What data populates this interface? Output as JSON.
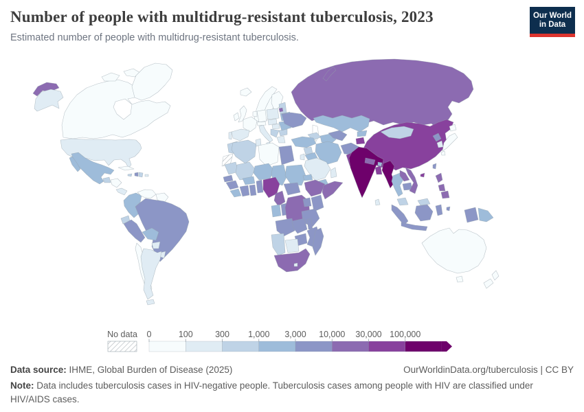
{
  "header": {
    "title": "Number of people with multidrug-resistant tuberculosis, 2023",
    "subtitle": "Estimated number of people with multidrug-resistant tuberculosis."
  },
  "logo": {
    "line1": "Our World",
    "line2": "in Data",
    "bg_color": "#0d2e4e",
    "accent_color": "#dc342e"
  },
  "legend": {
    "no_data_label": "No data",
    "tick_labels": [
      "0",
      "100",
      "300",
      "1,000",
      "3,000",
      "10,000",
      "30,000",
      "100,000"
    ],
    "bin_colors": [
      "#f7fcfd",
      "#e0ecf4",
      "#bfd3e6",
      "#9ebcda",
      "#8c96c6",
      "#8c6bb1",
      "#88419d",
      "#6e016b"
    ]
  },
  "footer": {
    "source_label": "Data source:",
    "source_text": "IHME, Global Burden of Disease (2025)",
    "rights": "OurWorldinData.org/tuberculosis | CC BY",
    "note_label": "Note:",
    "note_text": "Data includes tuberculosis cases in HIV-negative people. Tuberculosis cases among people with HIV are classified under HIV/AIDS cases."
  },
  "chart_data": {
    "type": "choropleth",
    "title": "Number of people with multidrug-resistant tuberculosis, 2023",
    "unit": "estimated people",
    "legend_position": "bottom",
    "bins": [
      {
        "range": "0–100",
        "color": "#f7fcfd"
      },
      {
        "range": "100–300",
        "color": "#e0ecf4"
      },
      {
        "range": "300–1,000",
        "color": "#bfd3e6"
      },
      {
        "range": "1,000–3,000",
        "color": "#9ebcda"
      },
      {
        "range": "3,000–10,000",
        "color": "#8c96c6"
      },
      {
        "range": "10,000–30,000",
        "color": "#8c6bb1"
      },
      {
        "range": "30,000–100,000",
        "color": "#88419d"
      },
      {
        "range": "100,000+",
        "color": "#6e016b"
      }
    ],
    "no_data": "hatched",
    "countries": {
      "United States": 2,
      "Canada": 1,
      "Greenland": 1,
      "Mexico": 4,
      "Guatemala": 3,
      "Honduras": 1,
      "Panama": 2,
      "Cuba": 1,
      "Haiti": 5,
      "Dominican Republic": 3,
      "Jamaica": 3,
      "Puerto Rico": 2,
      "Colombia": 4,
      "Venezuela": 1,
      "Guyana": 1,
      "Ecuador": 3,
      "Peru": 5,
      "Brazil": 5,
      "Bolivia": 4,
      "Paraguay": 2,
      "Uruguay": 2,
      "Chile": 1,
      "Argentina": 2,
      "Iceland": 1,
      "United Kingdom": 1,
      "Ireland": 1,
      "Norway": 1,
      "Sweden": 1,
      "Finland": 1,
      "Denmark": 1,
      "Lithuania": 3,
      "Belarus": 4,
      "Poland": 2,
      "Germany": 1,
      "Netherlands": 1,
      "France": 1,
      "Spain": 2,
      "Portugal": 2,
      "Italy": 2,
      "Switzerland": 1,
      "Czechia": 2,
      "Hungary": 2,
      "Serbia": 3,
      "Bulgaria": 3,
      "Greece": 2,
      "Romania": 4,
      "Ukraine": 5,
      "Russia": 6,
      "Kazakhstan": 4,
      "Georgia": 3,
      "Turkey": 4,
      "Syria": 3,
      "Iraq": 4,
      "Iran": 4,
      "Jordan": 2,
      "Saudi Arabia": 2,
      "Yemen": 4,
      "Oman": 2,
      "Turkmenistan": 4,
      "Uzbekistan": 5,
      "Kyrgyzstan": 4,
      "Tajikistan": 7,
      "Afghanistan": 5,
      "Pakistan": 7,
      "Morocco": 3,
      "Western Sahara": 0,
      "Algeria": 3,
      "Tunisia": 2,
      "Libya": 1,
      "Egypt": 5,
      "Mauritania": 3,
      "Mali": 3,
      "Niger": 4,
      "Chad": 4,
      "Sudan": 4,
      "Eritrea": 4,
      "Ethiopia": 6,
      "Somalia": 6,
      "Senegal": 5,
      "Guinea": 5,
      "Liberia": 4,
      "Ivory Coast": 5,
      "Ghana": 5,
      "Burkina Faso": 4,
      "Benin": 5,
      "Nigeria": 7,
      "Cameroon": 6,
      "Central African Republic": 5,
      "Gabon": 4,
      "Congo": 5,
      "DR Congo": 6,
      "Uganda": 5,
      "Kenya": 5,
      "Tanzania": 5,
      "Angola": 5,
      "Zambia": 5,
      "Malawi": 5,
      "Mozambique": 5,
      "Zimbabwe": 5,
      "Botswana": 2,
      "Namibia": 3,
      "South Africa": 6,
      "Lesotho": 2,
      "Madagascar": 5,
      "India": 8,
      "Nepal": 6,
      "Bhutan": 4,
      "Bangladesh": 7,
      "Sri Lanka": 2,
      "Myanmar": 8,
      "Thailand": 4,
      "Malaysia": 3,
      "Laos": 6,
      "Cambodia": 5,
      "Vietnam": 6,
      "China": 7,
      "Mongolia": 3,
      "North Korea": 5,
      "South Korea": 2,
      "Japan": 1,
      "Taiwan": 5,
      "Philippines": 6,
      "Indonesia": 5,
      "Papua New Guinea": 4,
      "Australia": 1,
      "New Zealand": 1
    }
  }
}
